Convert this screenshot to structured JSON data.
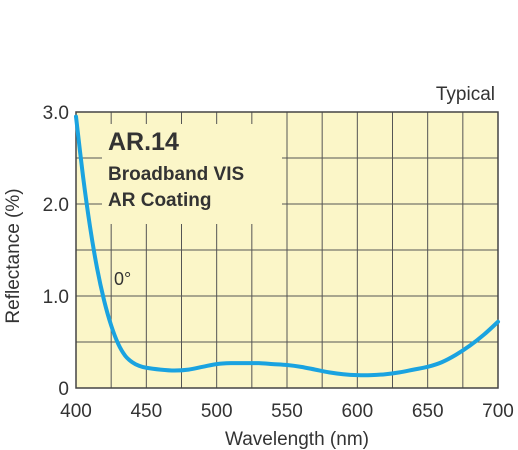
{
  "chart_data": {
    "type": "line",
    "corner_note": "Typical",
    "title": "AR.14",
    "subtitle_lines": [
      "Broadband VIS",
      "AR Coating"
    ],
    "xlabel": "Wavelength (nm)",
    "ylabel": "Reflectance (%)",
    "xlim": [
      400,
      700
    ],
    "ylim": [
      0,
      3
    ],
    "x_ticks": [
      400,
      450,
      500,
      550,
      600,
      650,
      700
    ],
    "x_tick_labels": [
      "400",
      "450",
      "500",
      "550",
      "600",
      "650",
      "700"
    ],
    "y_ticks": [
      0,
      1,
      2,
      3
    ],
    "y_tick_labels": [
      "0",
      "1.0",
      "2.0",
      "3.0"
    ],
    "grid": true,
    "grid_x_step": 25,
    "grid_y_step": 0.5,
    "series": [
      {
        "name": "0°",
        "color": "#1aa3e0",
        "x": [
          400,
          405,
          410,
          415,
          420,
          425,
          430,
          435,
          440,
          445,
          450,
          460,
          470,
          480,
          490,
          500,
          510,
          520,
          530,
          540,
          550,
          560,
          570,
          580,
          590,
          600,
          610,
          620,
          630,
          640,
          650,
          660,
          670,
          680,
          690,
          700
        ],
        "y": [
          2.95,
          2.3,
          1.75,
          1.3,
          0.95,
          0.68,
          0.48,
          0.35,
          0.28,
          0.24,
          0.22,
          0.2,
          0.19,
          0.2,
          0.23,
          0.26,
          0.27,
          0.27,
          0.27,
          0.26,
          0.25,
          0.23,
          0.2,
          0.17,
          0.15,
          0.14,
          0.14,
          0.15,
          0.17,
          0.2,
          0.23,
          0.28,
          0.36,
          0.46,
          0.58,
          0.72
        ]
      }
    ],
    "colors": {
      "plot_background": "#fbf6c8",
      "grid": "#555555",
      "frame": "#444444",
      "text": "#333333"
    }
  }
}
